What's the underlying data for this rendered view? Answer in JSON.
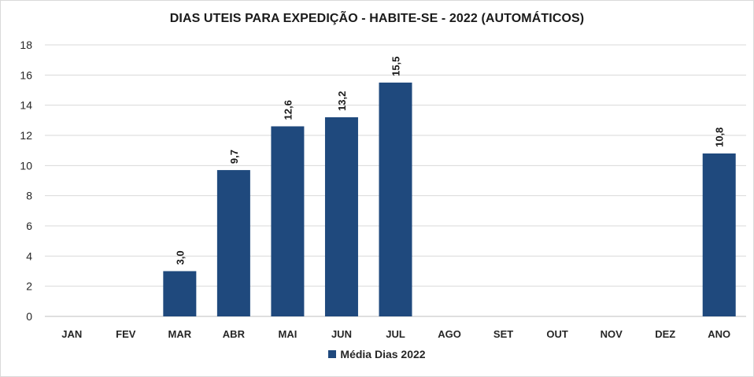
{
  "chart_data": {
    "type": "bar",
    "title": "DIAS UTEIS PARA EXPEDIÇÃO - HABITE-SE - 2022 (AUTOMÁTICOS)",
    "categories": [
      "JAN",
      "FEV",
      "MAR",
      "ABR",
      "MAI",
      "JUN",
      "JUL",
      "AGO",
      "SET",
      "OUT",
      "NOV",
      "DEZ",
      "ANO"
    ],
    "series": [
      {
        "name": "Média Dias 2022",
        "color": "#1f497d",
        "values": [
          null,
          null,
          3.0,
          9.7,
          12.6,
          13.2,
          15.5,
          null,
          null,
          null,
          null,
          null,
          10.8
        ],
        "labels": [
          "",
          "",
          "3,0",
          "9,7",
          "12,6",
          "13,2",
          "15,5",
          "",
          "",
          "",
          "",
          "",
          "10,8"
        ]
      }
    ],
    "ylim": [
      0,
      18
    ],
    "yticks": [
      "0",
      "2",
      "4",
      "6",
      "8",
      "10",
      "12",
      "14",
      "16",
      "18"
    ],
    "grid": true,
    "legend_position": "bottom"
  }
}
